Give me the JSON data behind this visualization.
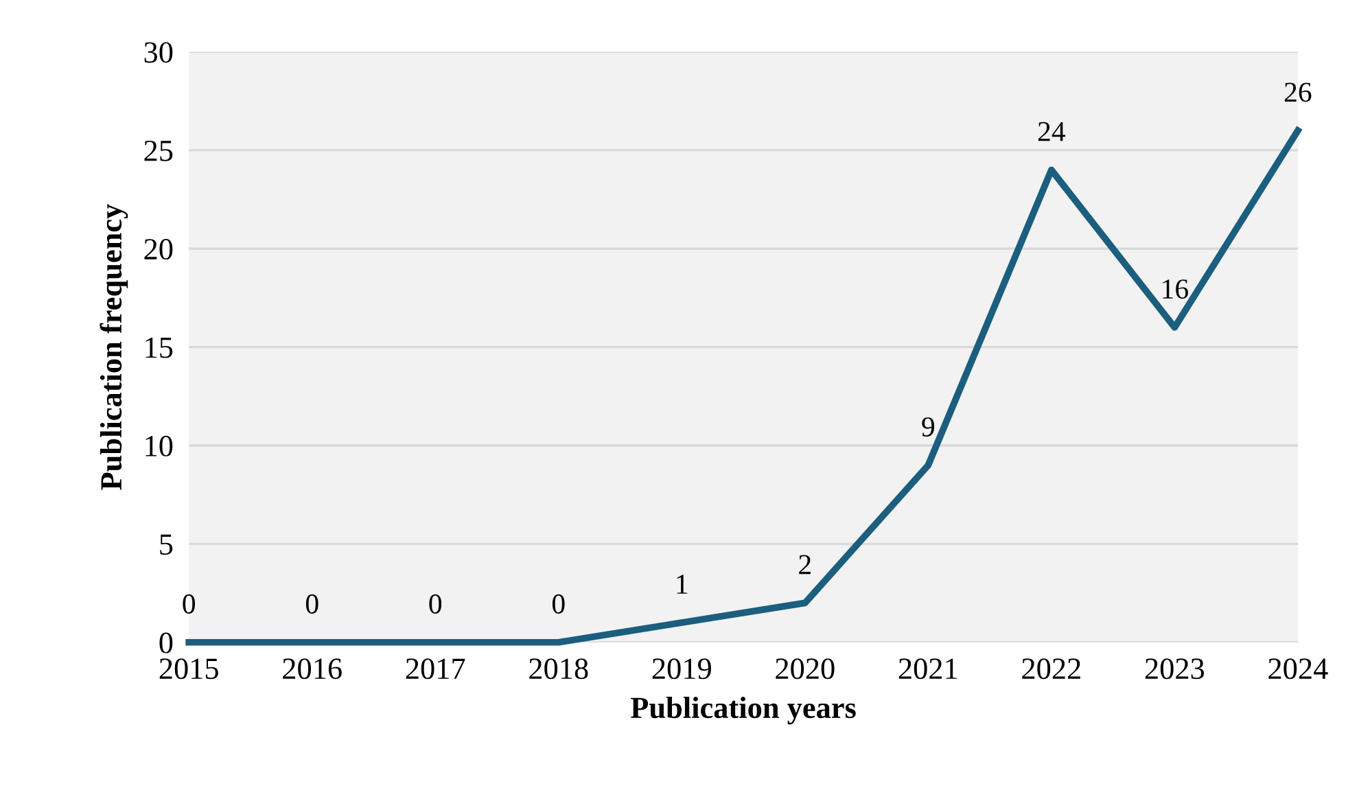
{
  "chart_data": {
    "type": "line",
    "xlabel": "Publication years",
    "ylabel": "Publication frequency",
    "categories": [
      "2015",
      "2016",
      "2017",
      "2018",
      "2019",
      "2020",
      "2021",
      "2022",
      "2023",
      "2024"
    ],
    "series": [
      {
        "color": "#1b5e7e",
        "values": [
          0,
          0,
          0,
          0,
          1,
          2,
          9,
          24,
          16,
          26
        ]
      }
    ],
    "ylim": [
      0,
      30
    ],
    "yticks": [
      0,
      5,
      10,
      15,
      20,
      25,
      30
    ],
    "grid": "y",
    "data_labels": true,
    "marker": "none",
    "line_style": "solid"
  }
}
